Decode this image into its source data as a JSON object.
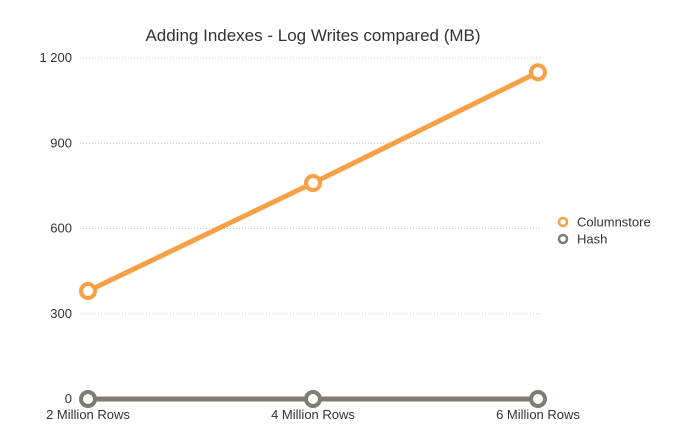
{
  "chart_data": {
    "type": "line",
    "title": "Adding Indexes - Log Writes compared (MB)",
    "xlabel": "",
    "ylabel": "",
    "categories": [
      "2 Million Rows",
      "4 Million Rows",
      "6 Million Rows"
    ],
    "yticks": [
      0,
      300,
      600,
      900,
      1200
    ],
    "ytick_labels": [
      "0",
      "300",
      "600",
      "900",
      "1 200"
    ],
    "ylim": [
      0,
      1200
    ],
    "grid": true,
    "legend_position": "right",
    "series": [
      {
        "name": "Columnstore",
        "values": [
          380,
          760,
          1150
        ],
        "color": "#f7a046"
      },
      {
        "name": "Hash",
        "values": [
          0,
          0,
          0
        ],
        "color": "#7f7b76"
      }
    ]
  }
}
